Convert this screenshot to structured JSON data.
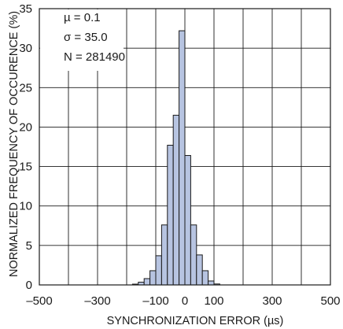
{
  "chart_data": {
    "type": "bar",
    "title": "",
    "xlabel": "SYNCHRONIZATION ERROR (µs)",
    "ylabel": "NORMALIZED FREQUENCY OF OCCURENCE (%)",
    "xlim": [
      -500,
      500
    ],
    "ylim": [
      0,
      35
    ],
    "xticks": [
      -500,
      -300,
      -100,
      0,
      100,
      300,
      500
    ],
    "xtick_labels": [
      "–500",
      "–300",
      "–100",
      "0",
      "100",
      "300",
      "500"
    ],
    "yticks": [
      0,
      5,
      10,
      15,
      20,
      25,
      30,
      35
    ],
    "ytick_labels": [
      "0",
      "5",
      "10",
      "15",
      "20",
      "25",
      "30",
      "35"
    ],
    "x_grid_lines": [
      -400,
      -300,
      -200,
      -100,
      0,
      100,
      200,
      300,
      400
    ],
    "y_grid_lines": [
      5,
      10,
      15,
      20,
      25,
      30
    ],
    "grid": true,
    "bin_width": 20,
    "bins": [
      {
        "x": -170,
        "value": 0.1
      },
      {
        "x": -150,
        "value": 0.35
      },
      {
        "x": -130,
        "value": 0.8
      },
      {
        "x": -110,
        "value": 1.8
      },
      {
        "x": -90,
        "value": 3.7
      },
      {
        "x": -70,
        "value": 7.6
      },
      {
        "x": -50,
        "value": 17.7
      },
      {
        "x": -30,
        "value": 21.5
      },
      {
        "x": -10,
        "value": 32.2
      },
      {
        "x": 10,
        "value": 16.4
      },
      {
        "x": 30,
        "value": 7.6
      },
      {
        "x": 50,
        "value": 3.8
      },
      {
        "x": 70,
        "value": 1.8
      },
      {
        "x": 90,
        "value": 0.5
      },
      {
        "x": 110,
        "value": 0.12
      }
    ],
    "annotations": [
      "µ = 0.1",
      "σ = 35.0",
      "N = 281490"
    ],
    "bar_fill": "#b7c4e1",
    "bar_stroke": "#1a1a1a",
    "grid_color": "#1a1a1a"
  }
}
